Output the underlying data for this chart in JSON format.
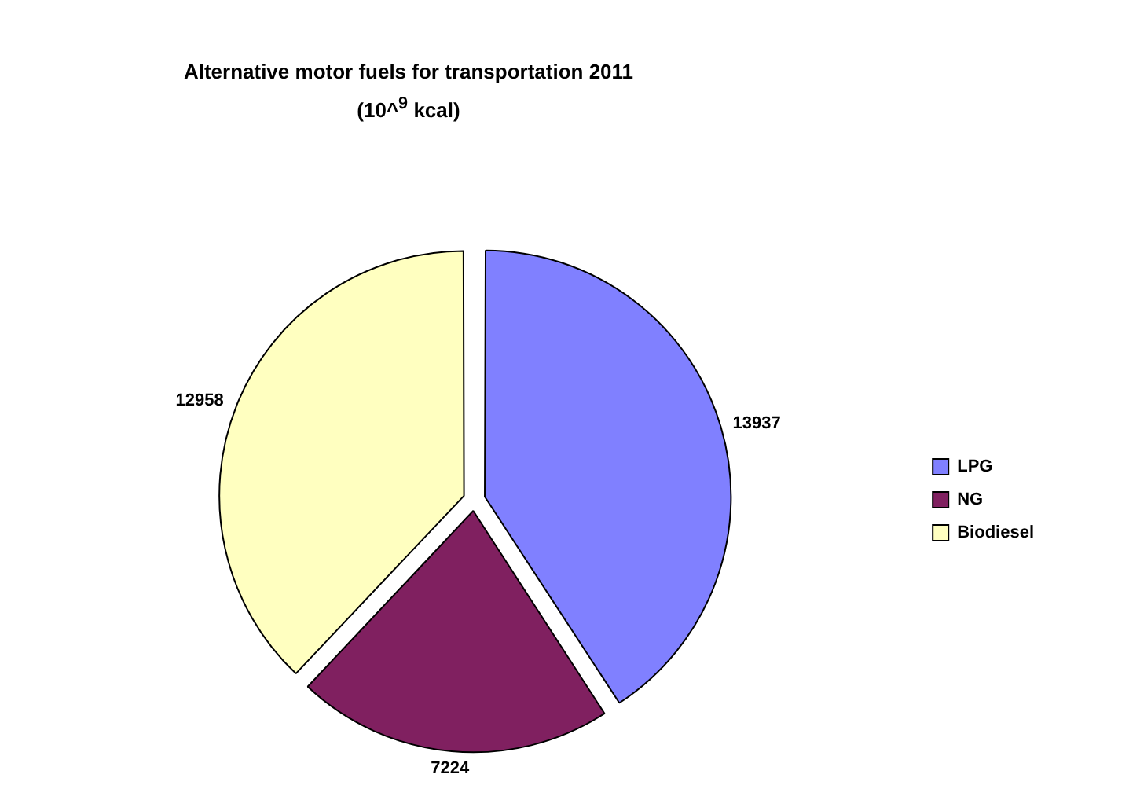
{
  "chart_data": {
    "type": "pie",
    "title": "Alternative motor fuels for transportation 2011",
    "subtitle": "(10^$^{9}$ kcal)",
    "categories": [
      "LPG",
      "NG",
      "Biodiesel"
    ],
    "values": [
      13937,
      7224,
      12958
    ],
    "colors": [
      "#8080ff",
      "#802060",
      "#ffffc0"
    ],
    "data_labels": true,
    "legend": "right"
  }
}
